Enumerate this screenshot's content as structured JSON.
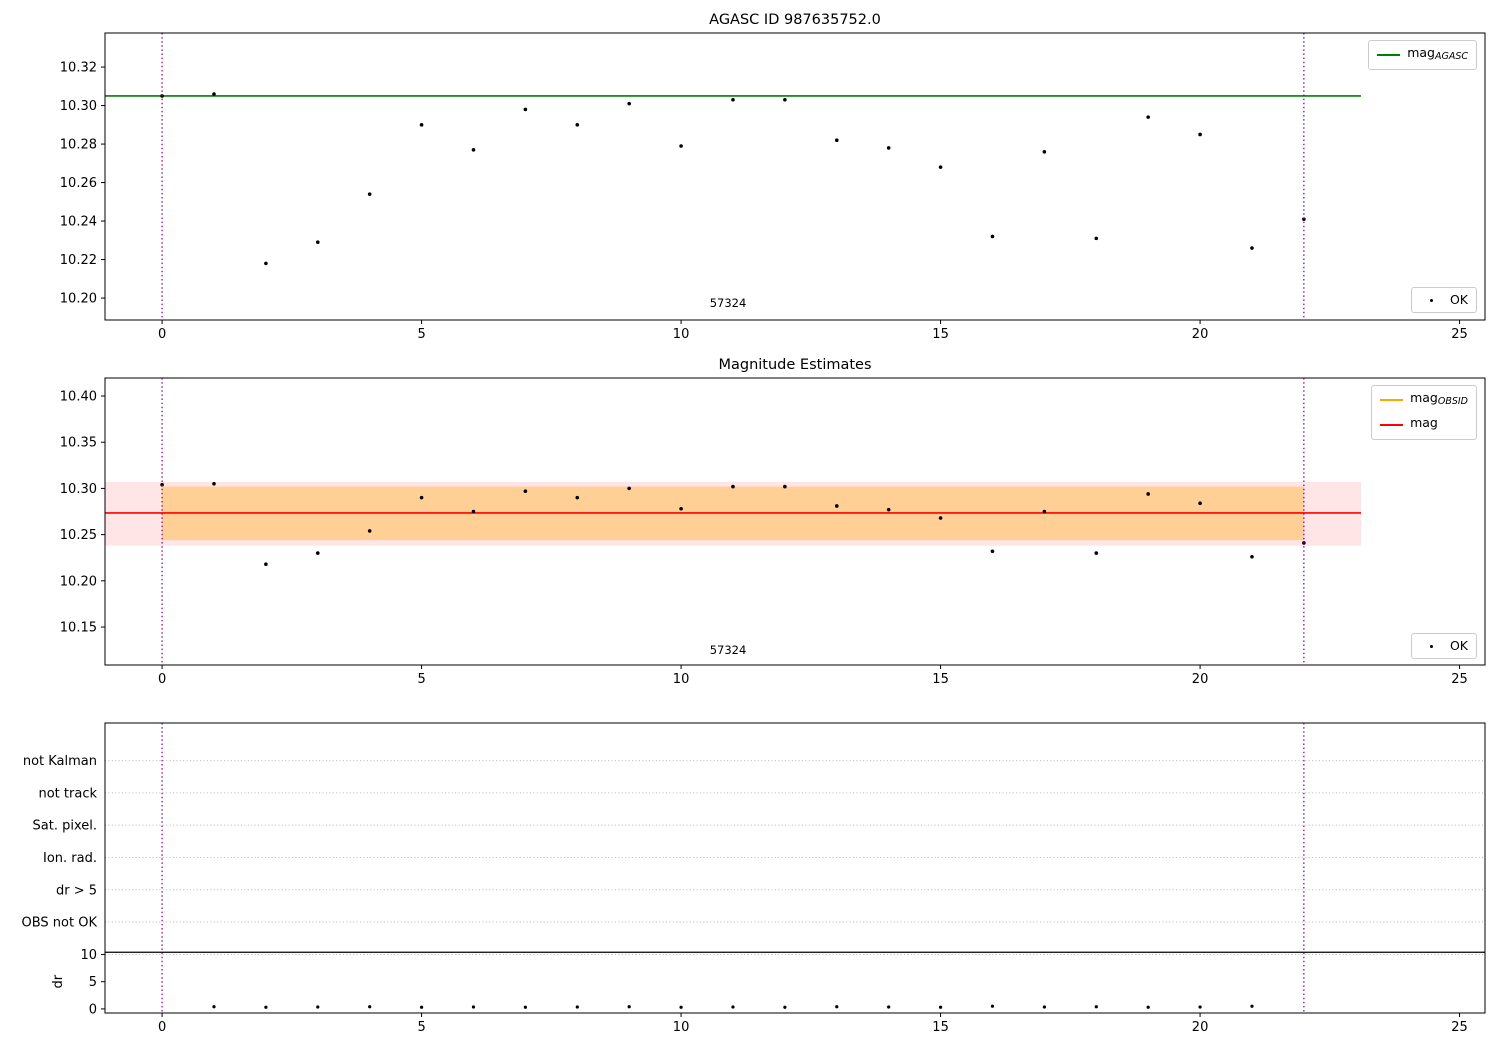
{
  "figure": {
    "background": "#ffffff",
    "colors": {
      "marker": "#000000",
      "vline": "#800080",
      "spine": "#000000",
      "grid": "#b8b8b8"
    }
  },
  "chart_data": [
    {
      "type": "scatter",
      "title": "AGASC ID 987635752.0",
      "xlim": [
        -1.1,
        25.49
      ],
      "ylim": [
        10.1886,
        10.3377
      ],
      "xticks": [
        0,
        5,
        10,
        15,
        20,
        25
      ],
      "yticks": [
        10.2,
        10.22,
        10.24,
        10.26,
        10.28,
        10.3,
        10.32
      ],
      "x": [
        0,
        1,
        2,
        3,
        4,
        5,
        6,
        7,
        8,
        9,
        10,
        11,
        12,
        13,
        14,
        15,
        16,
        17,
        18,
        19,
        20,
        21,
        22
      ],
      "y": [
        10.305,
        10.306,
        10.218,
        10.229,
        10.254,
        10.29,
        10.277,
        10.298,
        10.29,
        10.301,
        10.279,
        10.303,
        10.303,
        10.282,
        10.278,
        10.268,
        10.232,
        10.276,
        10.231,
        10.294,
        10.285,
        10.226,
        10.241
      ],
      "hlines": [
        {
          "value": 10.305,
          "color": "#008000",
          "span": [
            -1.1,
            23.1
          ]
        }
      ],
      "vlines": [
        0,
        22
      ],
      "annotation": {
        "text": "57324",
        "x": 10.9
      },
      "legend": [
        {
          "label": "mag",
          "sub": "AGASC",
          "color": "#008000"
        }
      ],
      "ok_label": "OK"
    },
    {
      "type": "scatter",
      "title": "Magnitude Estimates",
      "xlim": [
        -1.1,
        25.49
      ],
      "ylim": [
        10.1089,
        10.4195
      ],
      "xticks": [
        0,
        5,
        10,
        15,
        20,
        25
      ],
      "yticks": [
        10.15,
        10.2,
        10.25,
        10.3,
        10.35,
        10.4
      ],
      "x": [
        0,
        1,
        2,
        3,
        4,
        5,
        6,
        7,
        8,
        9,
        10,
        11,
        12,
        13,
        14,
        15,
        16,
        17,
        18,
        19,
        20,
        21,
        22
      ],
      "y": [
        10.304,
        10.305,
        10.218,
        10.23,
        10.254,
        10.29,
        10.275,
        10.297,
        10.29,
        10.3,
        10.278,
        10.302,
        10.302,
        10.281,
        10.277,
        10.268,
        10.232,
        10.275,
        10.23,
        10.294,
        10.284,
        10.226,
        10.241
      ],
      "bands": [
        {
          "span": [
            -1.1,
            23.1
          ],
          "y0": 10.238,
          "y1": 10.307,
          "color": "rgba(255,0,0,0.10)"
        },
        {
          "span": [
            0,
            22
          ],
          "y0": 10.244,
          "y1": 10.302,
          "color": "rgba(255,165,0,0.35)"
        }
      ],
      "hlines": [
        {
          "value": 10.2735,
          "color": "#ff0000",
          "span": [
            -1.1,
            23.1
          ]
        }
      ],
      "vlines": [
        0,
        22
      ],
      "annotation": {
        "text": "57324",
        "x": 10.9
      },
      "legend": [
        {
          "label": "mag",
          "sub": "OBSID",
          "color": "#ffa500"
        },
        {
          "label": "mag",
          "sub": "",
          "color": "#ff0000"
        }
      ],
      "ok_label": "OK"
    },
    {
      "type": "flags",
      "xlim": [
        -1.1,
        25.49
      ],
      "xticks": [
        0,
        5,
        10,
        15,
        20,
        25
      ],
      "categories": [
        "not Kalman",
        "not track",
        "Sat. pixel.",
        "Ion. rad.",
        "dr > 5",
        "OBS not OK"
      ],
      "dr_ticks": [
        0,
        5,
        10
      ],
      "dr_axis_label": "dr",
      "dr_threshold": 10,
      "points": {
        "x": [
          1,
          2,
          3,
          4,
          5,
          6,
          7,
          8,
          9,
          10,
          11,
          12,
          13,
          14,
          15,
          16,
          17,
          18,
          19,
          20,
          21
        ],
        "dr": [
          0.4,
          0.3,
          0.35,
          0.4,
          0.3,
          0.35,
          0.3,
          0.35,
          0.4,
          0.3,
          0.35,
          0.3,
          0.4,
          0.35,
          0.3,
          0.5,
          0.35,
          0.4,
          0.3,
          0.35,
          0.5
        ]
      },
      "vlines": [
        0,
        22
      ]
    }
  ]
}
